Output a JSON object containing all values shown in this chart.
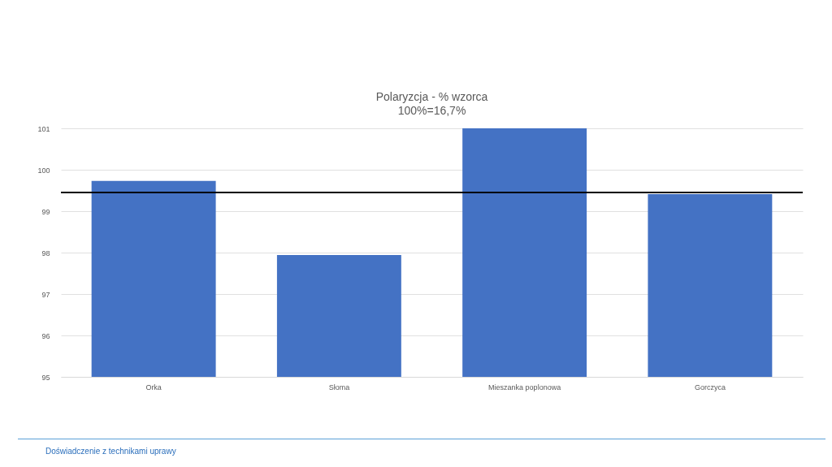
{
  "chart_data": {
    "type": "bar",
    "title": "Polaryzcja - % wzorca",
    "subtitle": "100%=16,7%",
    "categories": [
      "Orka",
      "Słoma",
      "Mieszanka poplonowa",
      "Gorczyca"
    ],
    "values": [
      99.73,
      97.94,
      101,
      99.41
    ],
    "color": "#4472c4",
    "ylim": [
      95,
      101
    ],
    "yticks": [
      95,
      96,
      97,
      98,
      99,
      100,
      101
    ],
    "grid": "y",
    "ref_lines": [
      {
        "axis": "y",
        "value": 99.45,
        "color": "#000000"
      }
    ],
    "annotations": [
      "Doświadczenie z technikami uprawy"
    ]
  }
}
